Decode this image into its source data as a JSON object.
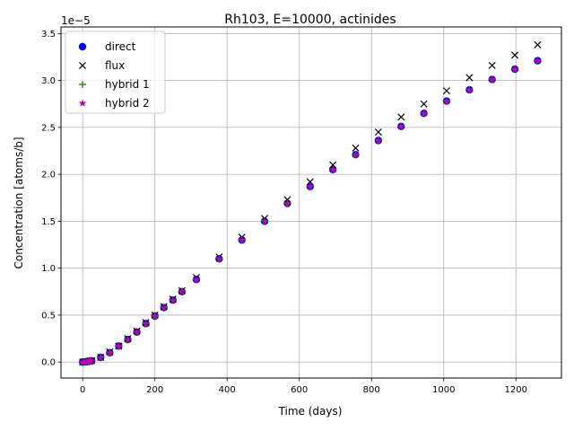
{
  "chart_data": {
    "type": "scatter",
    "title": "Rh103, E=10000, actinides",
    "xlabel": "Time (days)",
    "ylabel": "Concentration [atoms/b]",
    "y_offset_text": "1e−5",
    "y_scale_exponent": -5,
    "xlim": [
      -60,
      1326
    ],
    "ylim": [
      -1.7e-06,
      3.57e-05
    ],
    "x_ticks": [
      0,
      200,
      400,
      600,
      800,
      1000,
      1200
    ],
    "x_tick_labels": [
      "0",
      "200",
      "400",
      "600",
      "800",
      "1000",
      "1200"
    ],
    "y_ticks": [
      0.0,
      5e-06,
      1e-05,
      1.5e-05,
      2e-05,
      2.5e-05,
      3e-05,
      3.5e-05
    ],
    "y_tick_labels": [
      "0.0",
      "0.5",
      "1.0",
      "1.5",
      "2.0",
      "2.5",
      "3.0",
      "3.5"
    ],
    "grid": true,
    "legend_position": "top-left",
    "x": [
      0,
      5,
      10,
      15,
      20,
      25,
      50,
      75,
      100,
      125,
      150,
      175,
      200,
      225,
      250,
      275,
      315,
      378,
      441,
      504,
      567,
      630,
      693,
      756,
      819,
      882,
      945,
      1008,
      1071,
      1134,
      1197,
      1260
    ],
    "series": [
      {
        "name": "direct",
        "marker": "circle",
        "color": "#0000ff",
        "values": [
          0,
          2e-08,
          4e-08,
          7e-08,
          1e-07,
          1.4e-07,
          5e-07,
          1e-06,
          1.7e-06,
          2.4e-06,
          3.2e-06,
          4.1e-06,
          4.9e-06,
          5.8e-06,
          6.6e-06,
          7.5e-06,
          8.8e-06,
          1.1e-05,
          1.3e-05,
          1.5e-05,
          1.69e-05,
          1.87e-05,
          2.05e-05,
          2.21e-05,
          2.36e-05,
          2.51e-05,
          2.65e-05,
          2.78e-05,
          2.9e-05,
          3.01e-05,
          3.12e-05,
          3.21e-05
        ]
      },
      {
        "name": "flux",
        "marker": "x",
        "color": "#000000",
        "values": [
          0,
          2e-08,
          4e-08,
          7e-08,
          1e-07,
          1.4e-07,
          5e-07,
          1.1e-06,
          1.7e-06,
          2.5e-06,
          3.3e-06,
          4.2e-06,
          5e-06,
          5.9e-06,
          6.7e-06,
          7.6e-06,
          9e-06,
          1.12e-05,
          1.33e-05,
          1.53e-05,
          1.73e-05,
          1.92e-05,
          2.1e-05,
          2.28e-05,
          2.45e-05,
          2.61e-05,
          2.75e-05,
          2.89e-05,
          3.03e-05,
          3.16e-05,
          3.27e-05,
          3.38e-05
        ]
      },
      {
        "name": "hybrid 1",
        "marker": "plus",
        "color": "#008000",
        "values": [
          0,
          2e-08,
          4e-08,
          7e-08,
          1e-07,
          1.4e-07,
          5e-07,
          1e-06,
          1.7e-06,
          2.4e-06,
          3.2e-06,
          4.1e-06,
          4.9e-06,
          5.8e-06,
          6.6e-06,
          7.5e-06,
          8.8e-06,
          1.1e-05,
          1.3e-05,
          1.5e-05,
          1.69e-05,
          1.87e-05,
          2.05e-05,
          2.21e-05,
          2.36e-05,
          2.51e-05,
          2.65e-05,
          2.78e-05,
          2.9e-05,
          3.01e-05,
          3.12e-05,
          3.21e-05
        ]
      },
      {
        "name": "hybrid 2",
        "marker": "star",
        "color": "#bf00bf",
        "values": [
          0,
          2e-08,
          4e-08,
          7e-08,
          1e-07,
          1.4e-07,
          5e-07,
          1e-06,
          1.7e-06,
          2.4e-06,
          3.2e-06,
          4.1e-06,
          4.9e-06,
          5.8e-06,
          6.6e-06,
          7.5e-06,
          8.8e-06,
          1.1e-05,
          1.3e-05,
          1.5e-05,
          1.69e-05,
          1.87e-05,
          2.05e-05,
          2.21e-05,
          2.36e-05,
          2.51e-05,
          2.65e-05,
          2.78e-05,
          2.9e-05,
          3.01e-05,
          3.12e-05,
          3.21e-05
        ]
      }
    ]
  }
}
